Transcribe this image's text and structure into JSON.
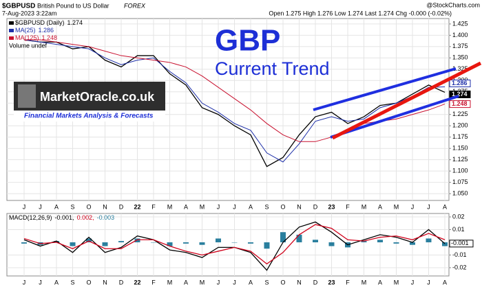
{
  "header": {
    "symbol": "$GBPUSD",
    "name": "British Pound to US Dollar",
    "exchange": "FOREX",
    "date": "7-Aug-2023 3:22am",
    "quote": "Open 1.275 High 1.276 Low 1.274 Last 1.274 Chg -0.000 (-0.02%)",
    "source": "@StockCharts.com"
  },
  "annotations": {
    "title": "GBP",
    "subtitle": "Current Trend",
    "logo": "MarketOracle.co.uk",
    "tagline": "Financial Markets Analysis & Forecasts"
  },
  "chart_data": [
    {
      "type": "line",
      "categories": [
        "J",
        "J",
        "A",
        "S",
        "O",
        "N",
        "D",
        "22",
        "F",
        "M",
        "A",
        "M",
        "J",
        "J",
        "A",
        "S",
        "O",
        "N",
        "D",
        "23",
        "F",
        "M",
        "A",
        "M",
        "J",
        "J",
        "A"
      ],
      "ylim": [
        1.035,
        1.437
      ],
      "yticks": [
        1.425,
        {
          "value": 1.4,
          "label": "1.400"
        },
        1.375,
        {
          "value": 1.35,
          "label": "1.350"
        },
        1.325,
        {
          "value": 1.3,
          "label": "1.300"
        },
        1.275,
        {
          "value": 1.25,
          "label": "1.250"
        },
        1.225,
        {
          "value": 1.2,
          "label": "1.200"
        },
        1.175,
        {
          "value": 1.15,
          "label": "1.150"
        },
        1.125,
        {
          "value": 1.1,
          "label": "1.100"
        },
        1.075,
        {
          "value": 1.05,
          "label": "1.050"
        }
      ],
      "grid": true,
      "volume_label": "Volume undef",
      "series": [
        {
          "name": "$GBPUSD (Daily)",
          "label": "1.274",
          "color": "#000000",
          "values": [
            1.39,
            1.385,
            1.385,
            1.37,
            1.375,
            1.345,
            1.33,
            1.355,
            1.355,
            1.315,
            1.29,
            1.24,
            1.225,
            1.2,
            1.18,
            1.11,
            1.13,
            1.18,
            1.22,
            1.23,
            1.205,
            1.22,
            1.245,
            1.25,
            1.27,
            1.29,
            1.274
          ]
        },
        {
          "name": "MA(25)",
          "label": "1.286",
          "color": "#1c2ea8",
          "values": [
            1.39,
            1.385,
            1.38,
            1.375,
            1.37,
            1.35,
            1.335,
            1.345,
            1.35,
            1.32,
            1.295,
            1.25,
            1.23,
            1.205,
            1.19,
            1.14,
            1.12,
            1.16,
            1.21,
            1.22,
            1.21,
            1.215,
            1.24,
            1.25,
            1.265,
            1.285,
            1.286
          ]
        },
        {
          "name": "MA(125)",
          "label": "1.248",
          "color": "#c8102e",
          "values": [
            1.39,
            1.39,
            1.385,
            1.38,
            1.375,
            1.365,
            1.355,
            1.35,
            1.345,
            1.34,
            1.33,
            1.31,
            1.285,
            1.26,
            1.235,
            1.205,
            1.18,
            1.165,
            1.165,
            1.175,
            1.19,
            1.205,
            1.21,
            1.215,
            1.225,
            1.235,
            1.248
          ]
        }
      ]
    },
    {
      "type": "macd",
      "title": "MACD(12,26,9)",
      "ylim": [
        -0.0265,
        0.0227
      ],
      "yticks": [
        0.02,
        0.01,
        -0.01,
        -0.02
      ],
      "grid": true,
      "series": [
        {
          "legend": "-0.001,",
          "label": "-0.001",
          "color": "#000000",
          "values": [
            0.002,
            -0.003,
            0.001,
            -0.008,
            0.004,
            -0.008,
            -0.004,
            0.005,
            0.002,
            -0.006,
            -0.008,
            -0.012,
            -0.004,
            -0.004,
            -0.008,
            -0.022,
            0.0,
            0.012,
            0.016,
            0.008,
            -0.002,
            0.002,
            0.006,
            0.004,
            0.0,
            0.01,
            -0.001
          ]
        },
        {
          "legend": "0.002,",
          "color": "#d0021b",
          "values": [
            0.003,
            -0.001,
            0.0,
            -0.005,
            0.001,
            -0.005,
            -0.005,
            0.002,
            0.002,
            -0.003,
            -0.007,
            -0.01,
            -0.007,
            -0.004,
            -0.007,
            -0.017,
            -0.008,
            0.006,
            0.014,
            0.011,
            0.002,
            0.001,
            0.004,
            0.005,
            0.002,
            0.007,
            0.002
          ]
        },
        {
          "legend": "-0.003",
          "color": "#2a7f9e",
          "values": [
            -0.001,
            -0.002,
            0.001,
            -0.003,
            0.003,
            -0.003,
            0.001,
            0.003,
            0,
            -0.003,
            -0.001,
            -0.002,
            0.003,
            0,
            -0.001,
            -0.005,
            0.008,
            0.006,
            0.002,
            -0.003,
            -0.004,
            0.001,
            0.002,
            -0.001,
            -0.002,
            0.003,
            -0.003
          ]
        }
      ]
    }
  ]
}
